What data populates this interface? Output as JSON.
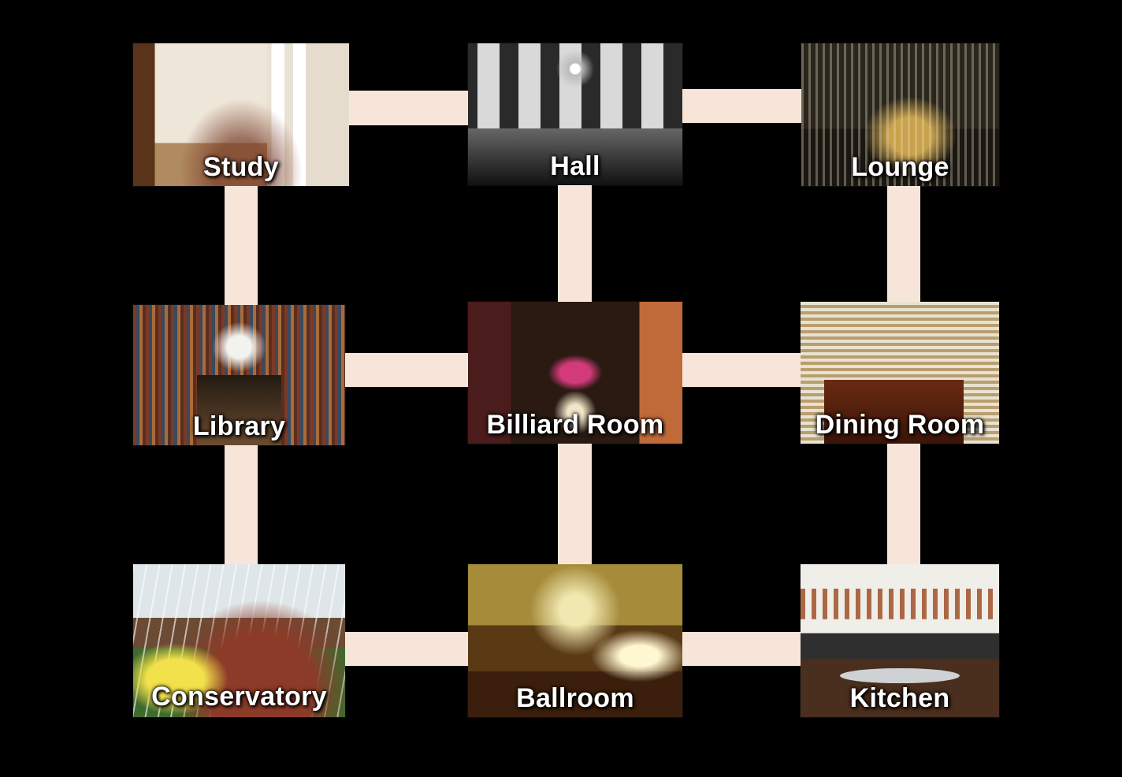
{
  "rooms": {
    "study": {
      "label": "Study"
    },
    "hall": {
      "label": "Hall"
    },
    "lounge": {
      "label": "Lounge"
    },
    "library": {
      "label": "Library"
    },
    "billiard_room": {
      "label": "Billiard Room"
    },
    "dining_room": {
      "label": "Dining Room"
    },
    "conservatory": {
      "label": "Conservatory"
    },
    "ballroom": {
      "label": "Ballroom"
    },
    "kitchen": {
      "label": "Kitchen"
    }
  },
  "connections": [
    [
      "Study",
      "Hall"
    ],
    [
      "Hall",
      "Lounge"
    ],
    [
      "Library",
      "Billiard Room"
    ],
    [
      "Billiard Room",
      "Dining Room"
    ],
    [
      "Conservatory",
      "Ballroom"
    ],
    [
      "Ballroom",
      "Kitchen"
    ],
    [
      "Study",
      "Library"
    ],
    [
      "Library",
      "Conservatory"
    ],
    [
      "Hall",
      "Billiard Room"
    ],
    [
      "Billiard Room",
      "Ballroom"
    ],
    [
      "Lounge",
      "Dining Room"
    ],
    [
      "Dining Room",
      "Kitchen"
    ]
  ],
  "colors": {
    "background": "#000000",
    "connector": "#f8e5da",
    "label": "#ffffff"
  }
}
